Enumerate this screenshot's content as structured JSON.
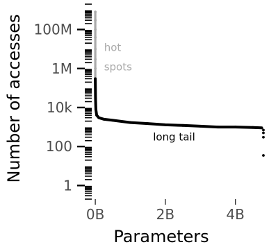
{
  "chart_data": {
    "type": "scatter",
    "xlabel": "Parameters",
    "ylabel": "Number of accesses",
    "y_scale": "log10",
    "x_ticks": [
      {
        "value": 0,
        "label": "0B"
      },
      {
        "value": 2000000000,
        "label": "2B"
      },
      {
        "value": 4000000000,
        "label": "4B"
      }
    ],
    "y_ticks": [
      {
        "value": 1,
        "label": "1"
      },
      {
        "value": 100,
        "label": "100"
      },
      {
        "value": 10000,
        "label": "10k"
      },
      {
        "value": 1000000,
        "label": "1M"
      },
      {
        "value": 100000000,
        "label": "100M"
      }
    ],
    "xlim": [
      -300000000,
      4900000000
    ],
    "ylim": [
      0.2,
      2000000000
    ],
    "grid": false,
    "colors": {
      "hot": "#aaaaaa",
      "tail": "#000000"
    },
    "series": [
      {
        "segment": "hot",
        "x": [
          0,
          0,
          0,
          0,
          0,
          0,
          0,
          0
        ],
        "y": [
          800000000,
          300000000,
          100000000,
          40000000,
          10000000,
          3000000,
          1000000,
          300000
        ]
      },
      {
        "segment": "tail",
        "x": [
          0,
          5000000,
          15000000,
          40000000,
          100000000,
          250000000,
          500000000,
          1000000000,
          1500000000,
          2000000000,
          2500000000,
          3000000000,
          3500000000,
          4000000000,
          4500000000,
          4750000000,
          4800000000,
          4800000000,
          4800000000,
          4800000000
        ],
        "y": [
          300000,
          30000,
          8000,
          4000,
          3000,
          2500,
          2200,
          1700,
          1500,
          1300,
          1200,
          1100,
          1000,
          1000,
          950,
          900,
          700,
          500,
          300,
          35
        ]
      }
    ],
    "annotations": [
      {
        "text": "hot",
        "x": 250000000,
        "y": 8000000,
        "color": "#aaaaaa"
      },
      {
        "text": "spots",
        "x": 250000000,
        "y": 800000,
        "color": "#aaaaaa"
      },
      {
        "text": "long tail",
        "x": 2250000000,
        "y": 200,
        "color": "#000000"
      }
    ]
  }
}
